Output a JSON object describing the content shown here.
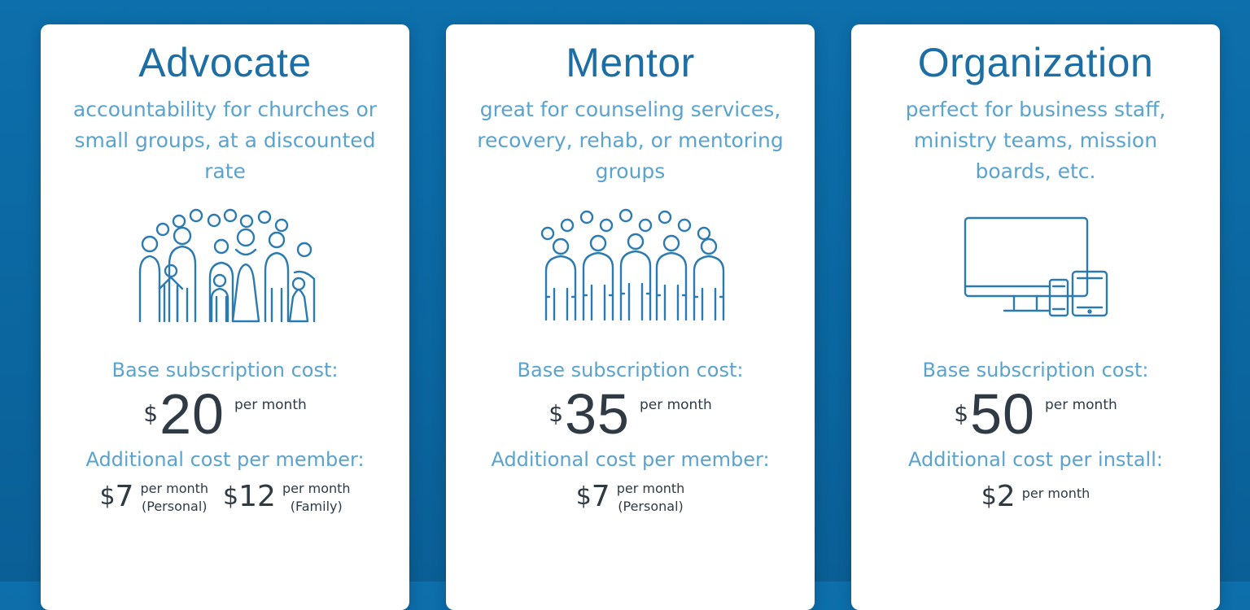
{
  "cards": [
    {
      "title": "Advocate",
      "description": "accountability for churches or small groups, at a discounted rate",
      "illustration_icon": "family-group-icon",
      "base_label": "Base subscription cost:",
      "base_currency": "$",
      "base_amount": "20",
      "base_period": "per month",
      "additional_label": "Additional cost per member:",
      "additional": [
        {
          "currency": "$",
          "amount": "7",
          "period": "per month",
          "note": "(Personal)"
        },
        {
          "currency": "$",
          "amount": "12",
          "period": "per month",
          "note": "(Family)"
        }
      ]
    },
    {
      "title": "Mentor",
      "description": "great for counseling services, recovery, rehab, or mentoring groups",
      "illustration_icon": "people-group-icon",
      "base_label": "Base subscription cost:",
      "base_currency": "$",
      "base_amount": "35",
      "base_period": "per month",
      "additional_label": "Additional cost per member:",
      "additional": [
        {
          "currency": "$",
          "amount": "7",
          "period": "per month",
          "note": "(Personal)"
        }
      ]
    },
    {
      "title": "Organization",
      "description": "perfect for business staff, ministry teams, mission boards, etc.",
      "illustration_icon": "devices-icon",
      "base_label": "Base subscription cost:",
      "base_currency": "$",
      "base_amount": "50",
      "base_period": "per month",
      "additional_label": "Additional cost per install:",
      "additional": [
        {
          "currency": "$",
          "amount": "2",
          "period": "per month",
          "note": ""
        }
      ]
    }
  ],
  "colors": {
    "background": "#0d6fab",
    "title": "#1c6ea4",
    "subtext": "#5aa3cf",
    "price": "#2f3a44",
    "icon_stroke": "#2b7ab1"
  }
}
